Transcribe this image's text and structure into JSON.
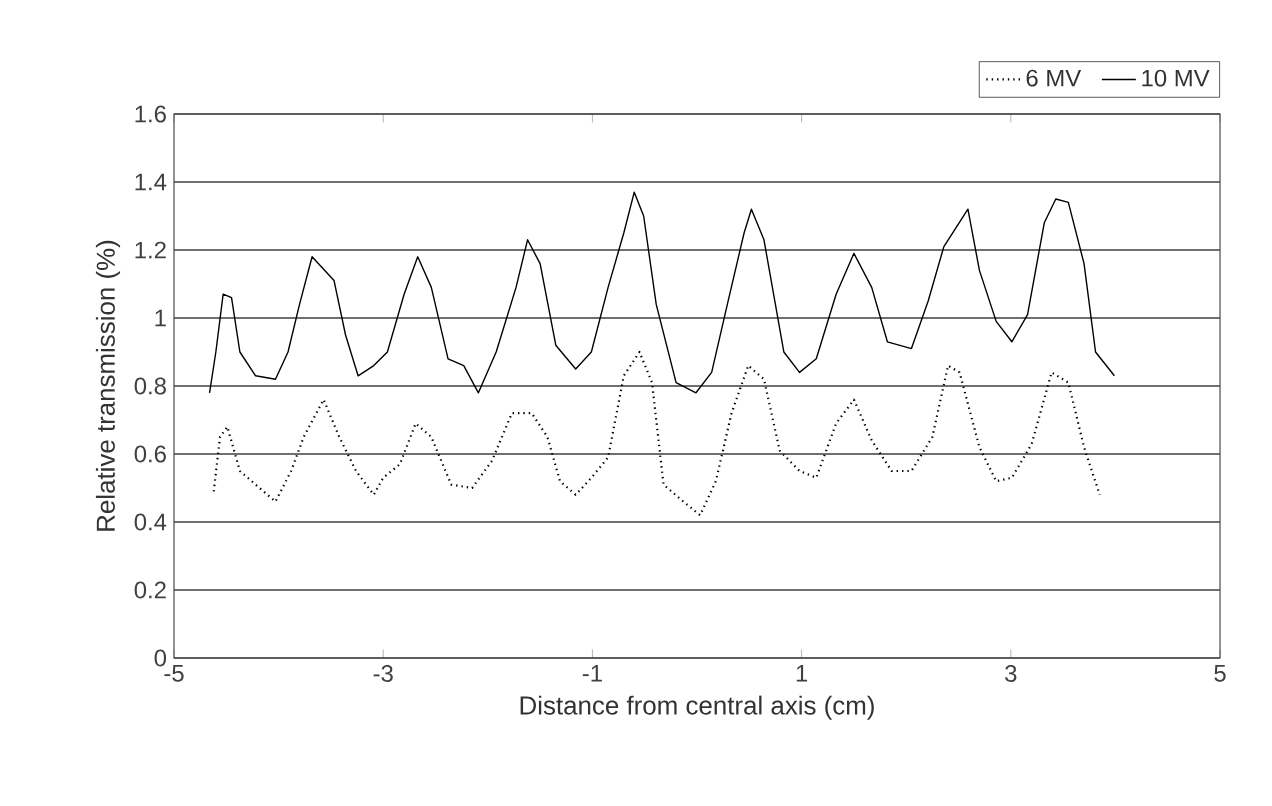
{
  "chart_data": {
    "type": "line",
    "xlabel": "Distance from central axis (cm)",
    "ylabel": "Relative transmission (%)",
    "xlim": [
      -5,
      5
    ],
    "xticks": [
      -5,
      -3,
      -1,
      1,
      3,
      5
    ],
    "ylim": [
      0,
      1.6
    ],
    "yticks": [
      0,
      0.2,
      0.4,
      0.6,
      0.8,
      1,
      1.2,
      1.4,
      1.6
    ],
    "grid": "y",
    "legend": "top right",
    "marker": "none",
    "series": [
      {
        "name": "6 MV",
        "color": "#000000",
        "line_style": "dotted",
        "x": [
          -4.62,
          -4.56,
          -4.49,
          -4.37,
          -4.22,
          -4.03,
          -3.88,
          -3.76,
          -3.57,
          -3.42,
          -3.26,
          -3.09,
          -3.0,
          -2.84,
          -2.69,
          -2.54,
          -2.35,
          -2.15,
          -1.96,
          -1.77,
          -1.58,
          -1.43,
          -1.31,
          -1.16,
          -1.01,
          -0.85,
          -0.7,
          -0.55,
          -0.43,
          -0.32,
          -0.13,
          0.03,
          0.18,
          0.33,
          0.49,
          0.64,
          0.79,
          0.98,
          1.14,
          1.33,
          1.5,
          1.67,
          1.86,
          2.05,
          2.25,
          2.4,
          2.51,
          2.7,
          2.86,
          3.01,
          3.2,
          3.39,
          3.55,
          3.7,
          3.85
        ],
        "values": [
          0.49,
          0.65,
          0.68,
          0.55,
          0.51,
          0.46,
          0.55,
          0.65,
          0.76,
          0.65,
          0.55,
          0.48,
          0.53,
          0.57,
          0.69,
          0.65,
          0.51,
          0.5,
          0.58,
          0.72,
          0.72,
          0.65,
          0.52,
          0.48,
          0.53,
          0.59,
          0.83,
          0.9,
          0.81,
          0.51,
          0.46,
          0.42,
          0.52,
          0.72,
          0.86,
          0.82,
          0.61,
          0.55,
          0.53,
          0.69,
          0.76,
          0.64,
          0.55,
          0.55,
          0.65,
          0.86,
          0.84,
          0.62,
          0.52,
          0.53,
          0.63,
          0.84,
          0.81,
          0.62,
          0.48
        ]
      },
      {
        "name": "10 MV",
        "color": "#000000",
        "line_style": "solid",
        "x": [
          -4.66,
          -4.6,
          -4.53,
          -4.45,
          -4.37,
          -4.22,
          -4.03,
          -3.91,
          -3.8,
          -3.68,
          -3.47,
          -3.36,
          -3.24,
          -3.09,
          -2.96,
          -2.8,
          -2.67,
          -2.54,
          -2.38,
          -2.23,
          -2.09,
          -1.92,
          -1.73,
          -1.62,
          -1.5,
          -1.35,
          -1.16,
          -1.01,
          -0.85,
          -0.7,
          -0.6,
          -0.51,
          -0.39,
          -0.2,
          -0.01,
          0.14,
          0.29,
          0.45,
          0.52,
          0.64,
          0.83,
          0.98,
          1.14,
          1.33,
          1.5,
          1.67,
          1.82,
          2.05,
          2.21,
          2.36,
          2.59,
          2.7,
          2.86,
          3.01,
          3.16,
          3.32,
          3.43,
          3.55,
          3.7,
          3.81,
          3.99
        ],
        "values": [
          0.78,
          0.9,
          1.07,
          1.06,
          0.9,
          0.83,
          0.82,
          0.9,
          1.04,
          1.18,
          1.11,
          0.95,
          0.83,
          0.86,
          0.9,
          1.07,
          1.18,
          1.09,
          0.88,
          0.86,
          0.78,
          0.9,
          1.09,
          1.23,
          1.16,
          0.92,
          0.85,
          0.9,
          1.09,
          1.25,
          1.37,
          1.3,
          1.04,
          0.81,
          0.78,
          0.84,
          1.04,
          1.25,
          1.32,
          1.23,
          0.9,
          0.84,
          0.88,
          1.07,
          1.19,
          1.09,
          0.93,
          0.91,
          1.05,
          1.21,
          1.32,
          1.14,
          0.99,
          0.93,
          1.01,
          1.28,
          1.35,
          1.34,
          1.16,
          0.9,
          0.83
        ]
      }
    ]
  }
}
